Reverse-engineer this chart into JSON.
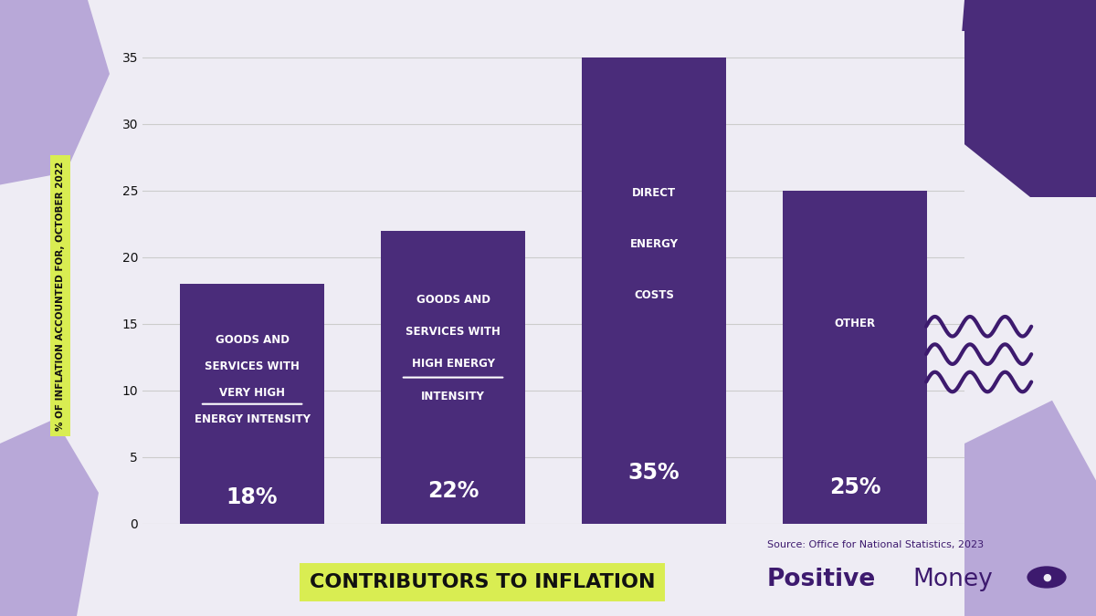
{
  "categories": [
    [
      "GOODS AND",
      "SERVICES WITH",
      "VERY HIGH",
      "ENERGY INTENSITY"
    ],
    [
      "GOODS AND",
      "SERVICES WITH",
      "HIGH ENERGY",
      "INTENSITY"
    ],
    [
      "DIRECT",
      "ENERGY",
      "COSTS"
    ],
    [
      "OTHER"
    ]
  ],
  "underline_lines": [
    "VERY HIGH",
    "HIGH ENERGY"
  ],
  "values": [
    18,
    22,
    35,
    25
  ],
  "pct_labels": [
    "18%",
    "22%",
    "35%",
    "25%"
  ],
  "bar_color": "#4a2c7a",
  "bg_color": "#eeecf4",
  "ylabel": "% OF INFLATION ACCOUNTED FOR, OCTOBER 2022",
  "ylabel_bg": "#d9ed52",
  "title": "CONTRIBUTORS TO INFLATION",
  "title_bg": "#d9ed52",
  "source_text": "Source: Office for National Statistics, 2023",
  "brand_bold": "Positive",
  "brand_normal": "Money",
  "ylim": [
    0,
    37
  ],
  "yticks": [
    0,
    5,
    10,
    15,
    20,
    25,
    30,
    35
  ],
  "text_white": "#ffffff",
  "text_dark": "#111111",
  "grid_color": "#cccccc",
  "brand_color": "#3d1a6e",
  "blob_dark": "#4a2c7a",
  "blob_light": "#b8a8d8"
}
